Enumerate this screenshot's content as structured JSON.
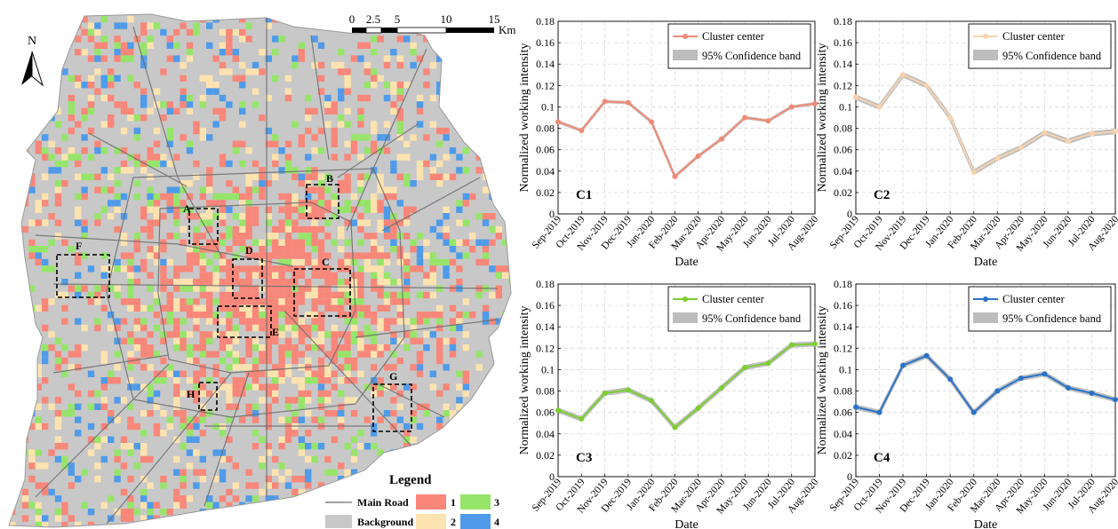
{
  "map": {
    "north_label": "N",
    "scale_ticks": [
      "0",
      "2.5",
      "5",
      "10",
      "15"
    ],
    "scale_unit": "Km",
    "regions": [
      "A",
      "B",
      "C",
      "D",
      "E",
      "F",
      "G",
      "H"
    ],
    "legend": {
      "title": "Legend",
      "main_road_label": "Main Road",
      "background_label": "Background",
      "classes": [
        {
          "label": "1",
          "color": "#f8877a"
        },
        {
          "label": "2",
          "color": "#fde3b0"
        },
        {
          "label": "3",
          "color": "#96e56a"
        },
        {
          "label": "4",
          "color": "#4f9be9"
        }
      ],
      "background_color": "#c8c8c8",
      "road_color": "#6b6b6b"
    }
  },
  "chart_data": [
    {
      "type": "line",
      "panel_label": "C1",
      "xlabel": "Date",
      "ylabel": "Normalized working intensity",
      "categories": [
        "Sep-2019",
        "Oct-2019",
        "Nov-2019",
        "Dec-2019",
        "Jan-2020",
        "Feb-2020",
        "Mar-2020",
        "Apr-2020",
        "May-2020",
        "Jun-2020",
        "Jul-2020",
        "Aug-2020"
      ],
      "yticks": [
        "0",
        "0.02",
        "0.04",
        "0.06",
        "0.08",
        "0.1",
        "0.12",
        "0.14",
        "0.16",
        "0.18"
      ],
      "ylim": [
        0,
        0.18
      ],
      "grid": true,
      "legend_position": "top-right",
      "legend": [
        "Cluster center",
        "95% Confidence band"
      ],
      "series": [
        {
          "name": "Cluster center",
          "color": "#f08a76",
          "values": [
            0.086,
            0.078,
            0.105,
            0.104,
            0.086,
            0.035,
            0.054,
            0.07,
            0.09,
            0.087,
            0.1,
            0.103
          ]
        }
      ],
      "band": {
        "name": "95% Confidence band",
        "color": "#c0c0c0",
        "half_width": 0.0006
      }
    },
    {
      "type": "line",
      "panel_label": "C2",
      "xlabel": "Date",
      "ylabel": "Normalized working intensity",
      "categories": [
        "Sep-2019",
        "Oct-2019",
        "Nov-2019",
        "Dec-2019",
        "Jan-2020",
        "Feb-2020",
        "Mar-2020",
        "Apr-2020",
        "May-2020",
        "Jun-2020",
        "Jul-2020",
        "Aug-2020"
      ],
      "yticks": [
        "0",
        "0.02",
        "0.04",
        "0.06",
        "0.08",
        "0.1",
        "0.12",
        "0.14",
        "0.16",
        "0.18"
      ],
      "ylim": [
        0,
        0.18
      ],
      "grid": true,
      "legend_position": "top-right",
      "legend": [
        "Cluster center",
        "95% Confidence band"
      ],
      "series": [
        {
          "name": "Cluster center",
          "color": "#f7d3ae",
          "values": [
            0.109,
            0.1,
            0.13,
            0.12,
            0.09,
            0.039,
            0.052,
            0.062,
            0.076,
            0.068,
            0.075,
            0.077
          ]
        }
      ],
      "band": {
        "name": "95% Confidence band",
        "color": "#b8b8b8",
        "half_width": 0.0015
      }
    },
    {
      "type": "line",
      "panel_label": "C3",
      "xlabel": "Date",
      "ylabel": "Normalized working intensity",
      "categories": [
        "Sep-2019",
        "Oct-2019",
        "Nov-2019",
        "Dec-2019",
        "Jan-2020",
        "Feb-2020",
        "Mar-2020",
        "Apr-2020",
        "May-2020",
        "Jun-2020",
        "Jul-2020",
        "Aug-2020"
      ],
      "yticks": [
        "0",
        "0.02",
        "0.04",
        "0.06",
        "0.08",
        "0.1",
        "0.12",
        "0.14",
        "0.16",
        "0.18"
      ],
      "ylim": [
        0,
        0.18
      ],
      "grid": true,
      "legend_position": "top-right",
      "legend": [
        "Cluster center",
        "95% Confidence band"
      ],
      "series": [
        {
          "name": "Cluster center",
          "color": "#7ccf2f",
          "values": [
            0.062,
            0.054,
            0.078,
            0.081,
            0.071,
            0.046,
            0.064,
            0.083,
            0.102,
            0.106,
            0.123,
            0.124
          ]
        }
      ],
      "band": {
        "name": "95% Confidence band",
        "color": "#b8b8b8",
        "half_width": 0.0015
      }
    },
    {
      "type": "line",
      "panel_label": "C4",
      "xlabel": "Date",
      "ylabel": "Normalized working intensity",
      "categories": [
        "Sep-2019",
        "Oct-2019",
        "Nov-2019",
        "Dec-2019",
        "Jan-2020",
        "Feb-2020",
        "Mar-2020",
        "Apr-2020",
        "May-2020",
        "Jun-2020",
        "Jul-2020",
        "Aug-2020"
      ],
      "yticks": [
        "0",
        "0.02",
        "0.04",
        "0.06",
        "0.08",
        "0.1",
        "0.12",
        "0.14",
        "0.16",
        "0.18"
      ],
      "ylim": [
        0,
        0.18
      ],
      "grid": true,
      "legend_position": "top-right",
      "legend": [
        "Cluster center",
        "95% Confidence band"
      ],
      "series": [
        {
          "name": "Cluster center",
          "color": "#2a73c8",
          "values": [
            0.065,
            0.06,
            0.104,
            0.113,
            0.091,
            0.06,
            0.08,
            0.092,
            0.096,
            0.083,
            0.078,
            0.072
          ]
        }
      ],
      "band": {
        "name": "95% Confidence band",
        "color": "#b8b8b8",
        "half_width": 0.0015
      }
    }
  ]
}
